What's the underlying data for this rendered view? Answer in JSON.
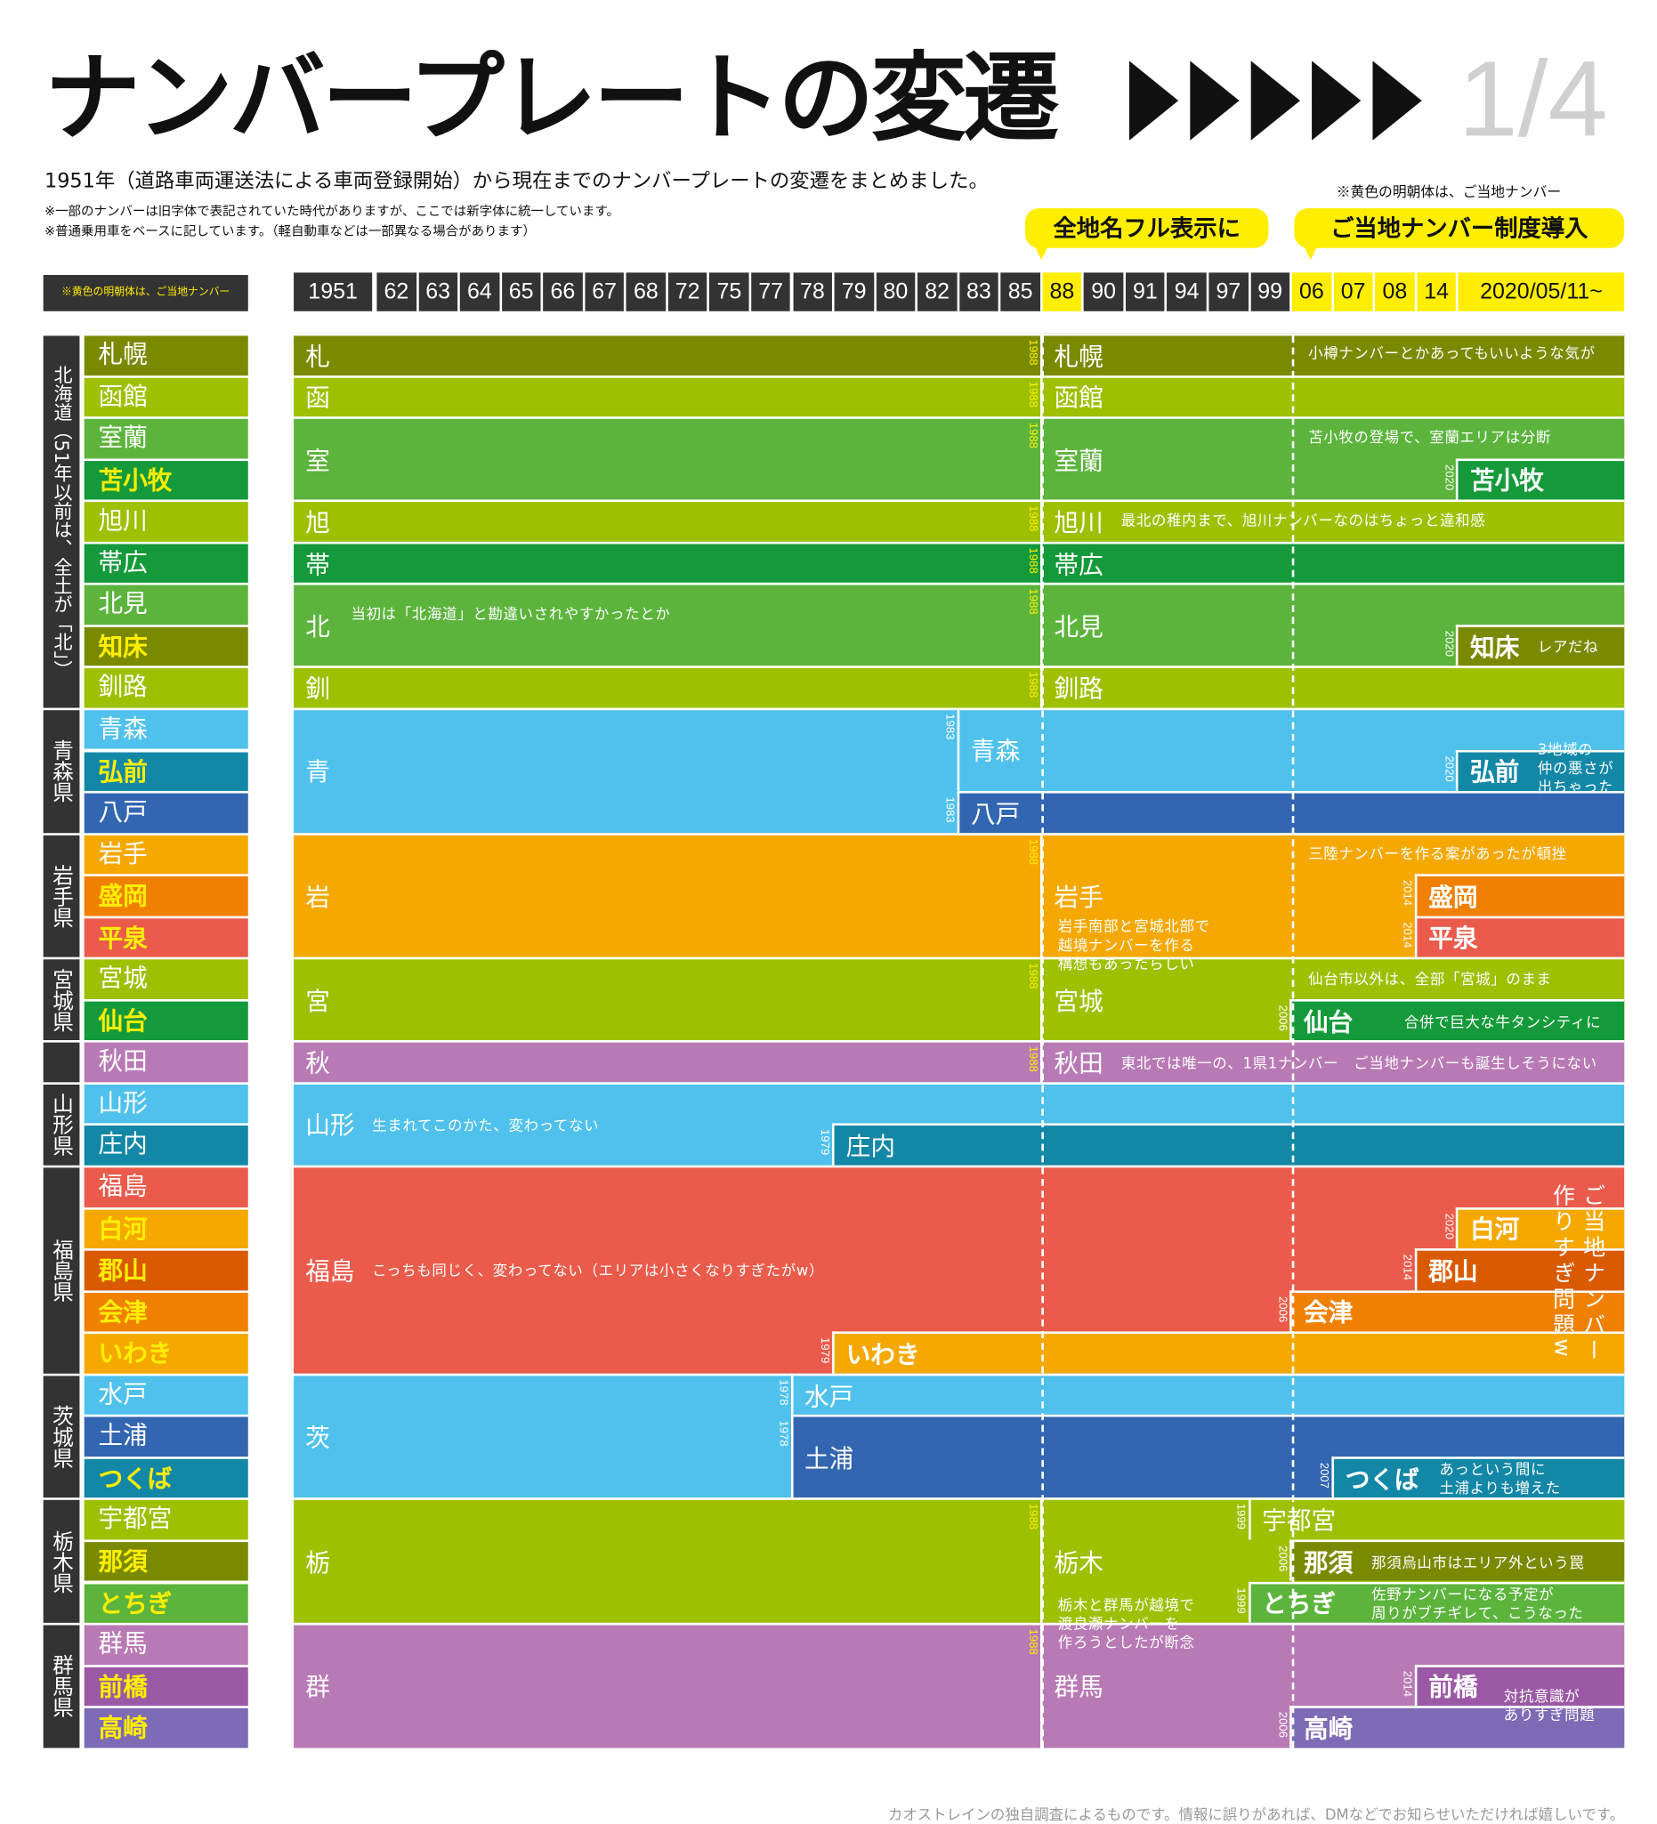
{
  "header": {
    "title": "ナンバープレートの変遷",
    "page": "1/4",
    "subtitle": "1951年（道路車両運送法による車両登録開始）から現在までのナンバープレートの変遷をまとめました。",
    "notes": [
      "※一部のナンバーは旧字体で表記されていた時代がありますが、ここでは新字体に統一しています。",
      "※普通乗用車をベースに記しています。（軽自動車などは一部異なる場合があります）"
    ],
    "legend_note": "※黄色の明朝体は、ご当地ナンバー",
    "balloons": [
      "全地名フル表示に",
      "ご当地ナンバー制度導入"
    ]
  },
  "left_legend": "※黄色の明朝体は、ご当地ナンバー",
  "years": [
    {
      "label": "1951"
    },
    {
      "label": "62"
    },
    {
      "label": "63"
    },
    {
      "label": "64"
    },
    {
      "label": "65"
    },
    {
      "label": "66"
    },
    {
      "label": "67"
    },
    {
      "label": "68"
    },
    {
      "label": "72"
    },
    {
      "label": "75"
    },
    {
      "label": "77"
    },
    {
      "label": "78"
    },
    {
      "label": "79"
    },
    {
      "label": "80"
    },
    {
      "label": "82"
    },
    {
      "label": "83"
    },
    {
      "label": "85"
    },
    {
      "label": "88",
      "highlight": true
    },
    {
      "label": "90"
    },
    {
      "label": "91"
    },
    {
      "label": "94"
    },
    {
      "label": "97"
    },
    {
      "label": "99"
    },
    {
      "label": "06",
      "highlight": true
    },
    {
      "label": "07",
      "highlight": true
    },
    {
      "label": "08",
      "highlight": true
    },
    {
      "label": "14",
      "highlight": true
    },
    {
      "label": "2020/05/11~",
      "highlight": true
    }
  ],
  "groups": [
    "北海道（51年以前は、全土が「北」）",
    "青森県",
    "岩手県",
    "宮城県",
    "山形県",
    "福島県",
    "茨城県",
    "栃木県",
    "群馬県"
  ],
  "rows": [
    {
      "name": "札幌",
      "color": "#7a8a00"
    },
    {
      "name": "函館",
      "color": "#9dc000"
    },
    {
      "name": "室蘭",
      "color": "#5cb43d"
    },
    {
      "name": "苫小牧",
      "color": "#149a3a",
      "gotochi": true
    },
    {
      "name": "旭川",
      "color": "#9dc000"
    },
    {
      "name": "帯広",
      "color": "#149a3a"
    },
    {
      "name": "北見",
      "color": "#5cb43d"
    },
    {
      "name": "知床",
      "color": "#7a8a00",
      "gotochi": true
    },
    {
      "name": "釧路",
      "color": "#9dc000"
    },
    {
      "name": "青森",
      "color": "#4fc1ec"
    },
    {
      "name": "弘前",
      "color": "#1287a6",
      "gotochi": true
    },
    {
      "name": "八戸",
      "color": "#3366b0"
    },
    {
      "name": "岩手",
      "color": "#f5a800"
    },
    {
      "name": "盛岡",
      "color": "#f08000",
      "gotochi": true
    },
    {
      "name": "平泉",
      "color": "#ea5b4b",
      "gotochi": true
    },
    {
      "name": "宮城",
      "color": "#9dc000"
    },
    {
      "name": "仙台",
      "color": "#149a3a",
      "gotochi": true
    },
    {
      "name": "秋田",
      "color": "#b87ab4"
    },
    {
      "name": "山形",
      "color": "#4fc1ec"
    },
    {
      "name": "庄内",
      "color": "#1287a6"
    },
    {
      "name": "福島",
      "color": "#ea5b4b"
    },
    {
      "name": "白河",
      "color": "#f5a800",
      "gotochi": true
    },
    {
      "name": "郡山",
      "color": "#d95a00",
      "gotochi": true
    },
    {
      "name": "会津",
      "color": "#f08000",
      "gotochi": true
    },
    {
      "name": "いわき",
      "color": "#f5a800",
      "gotochi": true
    },
    {
      "name": "水戸",
      "color": "#4fc1ec"
    },
    {
      "name": "土浦",
      "color": "#3366b0"
    },
    {
      "name": "つくば",
      "color": "#1287a6",
      "gotochi": true
    },
    {
      "name": "宇都宮",
      "color": "#9dc000"
    },
    {
      "name": "那須",
      "color": "#7a8a00",
      "gotochi": true
    },
    {
      "name": "とちぎ",
      "color": "#5cb43d",
      "gotochi": true
    },
    {
      "name": "群馬",
      "color": "#b87ab4"
    },
    {
      "name": "前橋",
      "color": "#9b59a5",
      "gotochi": true
    },
    {
      "name": "高崎",
      "color": "#7d6bb5",
      "gotochi": true
    }
  ],
  "blocks": [
    {
      "label": "札",
      "color": "#7a8a00"
    },
    {
      "label": "函",
      "color": "#9dc000"
    },
    {
      "label": "室",
      "color": "#5cb43d"
    },
    {
      "label": "旭",
      "color": "#9dc000"
    },
    {
      "label": "帯",
      "color": "#149a3a"
    },
    {
      "label": "北",
      "color": "#5cb43d"
    },
    {
      "label": "釧",
      "color": "#9dc000"
    },
    {
      "label": "札幌",
      "since": "1988",
      "color": "#7a8a00",
      "tag_color": "#ffee00"
    },
    {
      "label": "函館",
      "since": "1988",
      "color": "#9dc000",
      "tag_color": "#ffee00"
    },
    {
      "label": "室蘭",
      "since": "1988",
      "color": "#5cb43d",
      "tag_color": "#ffee00"
    },
    {
      "label": "苫小牧",
      "since": "2020",
      "color": "#149a3a",
      "gotochi": true,
      "tag_color": "#ffffff"
    },
    {
      "label": "旭川",
      "since": "1988",
      "color": "#9dc000",
      "tag_color": "#ffee00"
    },
    {
      "label": "帯広",
      "since": "1988",
      "color": "#149a3a",
      "tag_color": "#ffee00"
    },
    {
      "label": "北見",
      "since": "1988",
      "color": "#5cb43d",
      "tag_color": "#ffee00"
    },
    {
      "label": "知床",
      "since": "2020",
      "color": "#7a8a00",
      "gotochi": true,
      "tag_color": "#ffffff"
    },
    {
      "label": "釧路",
      "since": "1988",
      "color": "#9dc000",
      "tag_color": "#ffee00"
    },
    {
      "label": "青",
      "color": "#4fc1ec"
    },
    {
      "label": "青森",
      "since": "1983",
      "color": "#4fc1ec",
      "tag_color": "#ffffff"
    },
    {
      "label": "八戸",
      "since": "1983",
      "color": "#3366b0",
      "tag_color": "#ffffff"
    },
    {
      "label": "弘前",
      "since": "2020",
      "color": "#1287a6",
      "gotochi": true,
      "tag_color": "#ffffff"
    },
    {
      "label": "岩",
      "color": "#f5a800"
    },
    {
      "label": "岩手",
      "since": "1988",
      "color": "#f5a800",
      "tag_color": "#ffee00"
    },
    {
      "label": "盛岡",
      "since": "2014",
      "color": "#f08000",
      "gotochi": true,
      "tag_color": "#ffffff"
    },
    {
      "label": "平泉",
      "since": "2014",
      "color": "#ea5b4b",
      "gotochi": true,
      "tag_color": "#ffffff"
    },
    {
      "label": "宮",
      "color": "#9dc000"
    },
    {
      "label": "宮城",
      "since": "1988",
      "color": "#9dc000",
      "tag_color": "#ffee00"
    },
    {
      "label": "仙台",
      "since": "2006",
      "color": "#149a3a",
      "gotochi": true,
      "tag_color": "#ffffff"
    },
    {
      "label": "秋",
      "color": "#b87ab4"
    },
    {
      "label": "秋田",
      "since": "1988",
      "color": "#b87ab4",
      "tag_color": "#ffee00"
    },
    {
      "label": "山形",
      "color": "#4fc1ec"
    },
    {
      "label": "庄内",
      "since": "1979",
      "color": "#1287a6",
      "tag_color": "#ffffff"
    },
    {
      "label": "福島",
      "color": "#ea5b4b"
    },
    {
      "label": "いわき",
      "since": "1979",
      "color": "#f5a800",
      "gotochi": true,
      "tag_color": "#ffffff"
    },
    {
      "label": "会津",
      "since": "2006",
      "color": "#f08000",
      "gotochi": true,
      "tag_color": "#ffffff"
    },
    {
      "label": "郡山",
      "since": "2014",
      "color": "#d95a00",
      "gotochi": true,
      "tag_color": "#ffffff"
    },
    {
      "label": "白河",
      "since": "2020",
      "color": "#f5a800",
      "gotochi": true,
      "tag_color": "#ffffff"
    },
    {
      "label": "茨",
      "color": "#4fc1ec"
    },
    {
      "label": "水戸",
      "since": "1978",
      "color": "#4fc1ec",
      "tag_color": "#ffffff"
    },
    {
      "label": "土浦",
      "since": "1978",
      "color": "#3366b0",
      "tag_color": "#ffffff"
    },
    {
      "label": "つくば",
      "since": "2007",
      "color": "#1287a6",
      "gotochi": true,
      "tag_color": "#ffffff"
    },
    {
      "label": "栃",
      "color": "#9dc000"
    },
    {
      "label": "栃木",
      "since": "1988",
      "color": "#9dc000",
      "tag_color": "#ffee00"
    },
    {
      "label": "宇都宮",
      "since": "1999",
      "color": "#9dc000",
      "tag_color": "#ffffff"
    },
    {
      "label": "那須",
      "since": "2006",
      "color": "#7a8a00",
      "gotochi": true,
      "tag_color": "#ffffff"
    },
    {
      "label": "とちぎ",
      "since": "1999",
      "color": "#5cb43d",
      "gotochi": true,
      "tag_color": "#ffffff"
    },
    {
      "label": "群",
      "color": "#b87ab4"
    },
    {
      "label": "群馬",
      "since": "1988",
      "color": "#b87ab4",
      "tag_color": "#ffee00"
    },
    {
      "label": "前橋",
      "since": "2014",
      "color": "#9b59a5",
      "gotochi": true,
      "tag_color": "#ffffff"
    },
    {
      "label": "高崎",
      "since": "2006",
      "color": "#7d6bb5",
      "gotochi": true,
      "tag_color": "#ffffff"
    }
  ],
  "notes": [
    "小樽ナンバーとかあってもいいような気が",
    "苫小牧の登場で、室蘭エリアは分断",
    "最北の稚内まで、旭川ナンバーなのはちょっと違和感",
    "当初は「北海道」と勘違いされやすかったとか",
    "レアだね",
    "3地域の\n仲の悪さが\n出ちゃった",
    "三陸ナンバーを作る案があったが頓挫",
    "岩手南部と宮城北部で\n越境ナンバーを作る\n構想もあったらしい",
    "仙台市以外は、全部「宮城」のまま",
    "合併で巨大な牛タンシティに",
    "東北では唯一の、1県1ナンバー　ご当地ナンバーも誕生しそうにない",
    "生まれてこのかた、変わってない",
    "こっちも同じく、変わってない（エリアは小さくなりすぎたがw）",
    "ご当地ナンバー\n作りすぎ問題w",
    "あっという間に\n土浦よりも増えた",
    "那須烏山市はエリア外という罠",
    "佐野ナンバーになる予定が\n周りがブチギレて、こうなった",
    "栃木と群馬が越境で\n渡良瀬ナンバーを\n作ろうとしたが断念",
    "対抗意識が\nありすぎ問題"
  ],
  "footer": "カオストレインの独自調査によるものです。情報に誤りがあれば、DMなどでお知らせいただければ嬉しいです。"
}
